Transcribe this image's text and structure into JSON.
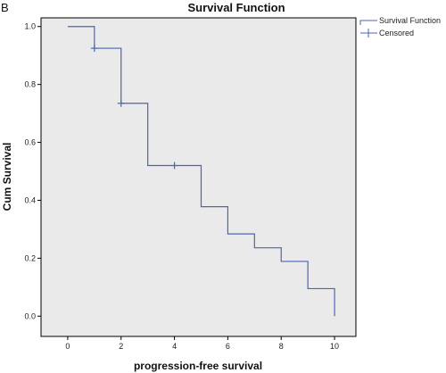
{
  "panel_label": "B",
  "chart_data": {
    "type": "line",
    "title": "Survival Function",
    "xlabel": "progression-free survival",
    "ylabel": "Cum Survival",
    "xlim": [
      -1,
      10.8
    ],
    "ylim": [
      -0.07,
      1.03
    ],
    "x_ticks": [
      0,
      2,
      4,
      6,
      8,
      10
    ],
    "y_ticks": [
      0.0,
      0.2,
      0.4,
      0.6,
      0.8,
      1.0
    ],
    "x_tick_labels": [
      "0",
      "2",
      "4",
      "6",
      "8",
      "10"
    ],
    "y_tick_labels": [
      "0.0",
      "0.2",
      "0.4",
      "0.6",
      "0.8",
      "1.0"
    ],
    "grid": false,
    "legend_position": "outside-top-right",
    "series": [
      {
        "name": "Survival Function",
        "style": "step",
        "color": "#4a66b5",
        "x": [
          0,
          1,
          2,
          3,
          5,
          6,
          7,
          8,
          9,
          10
        ],
        "y": [
          1.0,
          0.925,
          0.735,
          0.52,
          0.378,
          0.284,
          0.236,
          0.189,
          0.095,
          0.0
        ]
      },
      {
        "name": "Censored",
        "style": "marker-plus",
        "color": "#4a66b5",
        "x": [
          1,
          2,
          4
        ],
        "y": [
          0.925,
          0.735,
          0.52
        ]
      }
    ]
  },
  "colors": {
    "plot_background": "#eaeaea",
    "line": "#4a66b5",
    "axis": "#000000"
  }
}
